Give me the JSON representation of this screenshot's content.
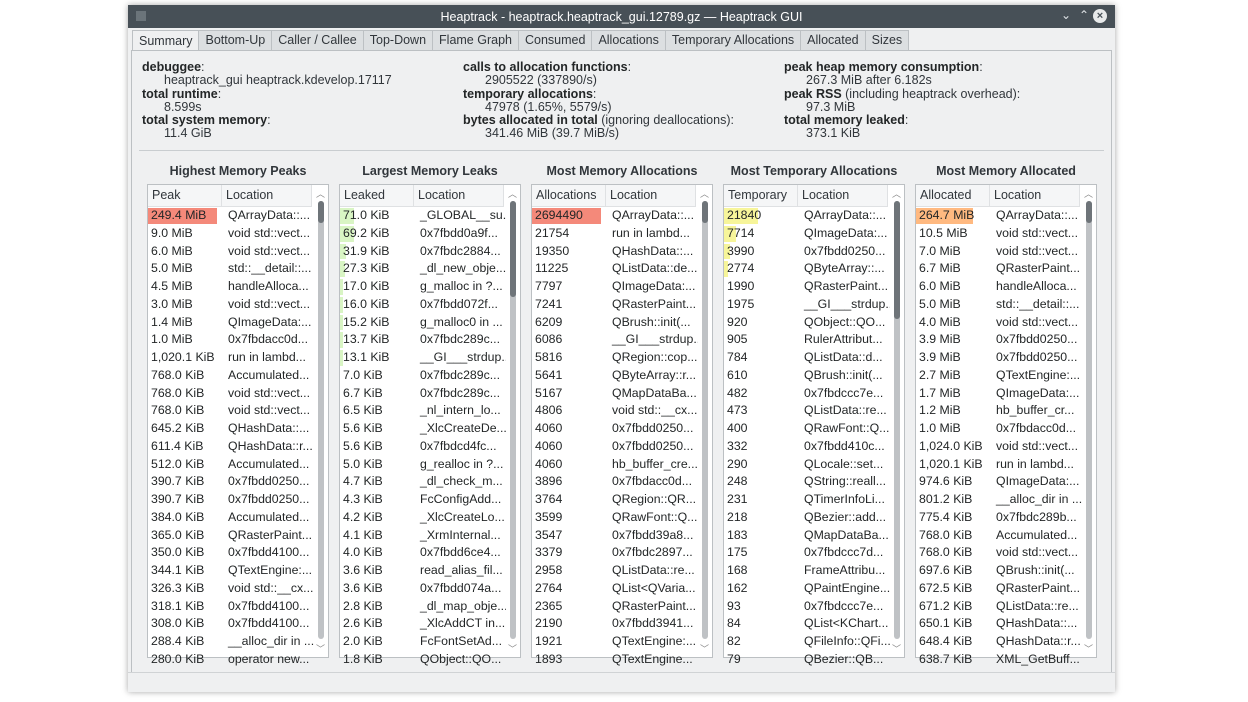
{
  "window": {
    "title": "Heaptrack - heaptrack.heaptrack_gui.12789.gz — Heaptrack GUI"
  },
  "tabs": [
    "Summary",
    "Bottom-Up",
    "Caller / Callee",
    "Top-Down",
    "Flame Graph",
    "Consumed",
    "Allocations",
    "Temporary Allocations",
    "Allocated",
    "Sizes"
  ],
  "active_tab": "Summary",
  "summary": {
    "col1": [
      {
        "label": "debuggee",
        "suffix": ":",
        "value": "heaptrack_gui heaptrack.kdevelop.17117"
      },
      {
        "label": "total runtime",
        "suffix": ":",
        "value": "8.599s"
      },
      {
        "label": "total system memory",
        "suffix": ":",
        "value": "11.4 GiB"
      }
    ],
    "col2": [
      {
        "label": "calls to allocation functions",
        "suffix": ":",
        "value": "2905522 (337890/s)"
      },
      {
        "label": "temporary allocations",
        "suffix": ":",
        "value": "47978 (1.65%, 5579/s)"
      },
      {
        "label": "bytes allocated in total",
        "suffix": " (ignoring deallocations):",
        "value": "341.46 MiB (39.7 MiB/s)"
      }
    ],
    "col3": [
      {
        "label": "peak heap memory consumption",
        "suffix": ":",
        "value": "267.3 MiB after 6.182s"
      },
      {
        "label": "peak RSS",
        "suffix": " (including heaptrack overhead):",
        "value": "97.3 MiB"
      },
      {
        "label": "total memory leaked",
        "suffix": ":",
        "value": "373.1 KiB"
      }
    ]
  },
  "tables": [
    {
      "title": "Highest Memory Peaks",
      "headers": [
        "Peak",
        "Location"
      ],
      "bar_color": "#f4897a",
      "bars": [
        0.93
      ],
      "scroll": {
        "position": 0.0,
        "visible": 0.05
      },
      "rows": [
        [
          "249.4 MiB",
          "QArrayData::..."
        ],
        [
          "9.0 MiB",
          "void std::vect..."
        ],
        [
          "6.0 MiB",
          "void std::vect..."
        ],
        [
          "5.0 MiB",
          "std::__detail::..."
        ],
        [
          "4.5 MiB",
          "handleAlloca..."
        ],
        [
          "3.0 MiB",
          "void std::vect..."
        ],
        [
          "1.4 MiB",
          "QImageData:..."
        ],
        [
          "1.0 MiB",
          "0x7fbdacc0d..."
        ],
        [
          "1,020.1 KiB",
          "run in lambd..."
        ],
        [
          "768.0 KiB",
          "Accumulated..."
        ],
        [
          "768.0 KiB",
          "void std::vect..."
        ],
        [
          "768.0 KiB",
          "void std::vect..."
        ],
        [
          "645.2 KiB",
          "QHashData::..."
        ],
        [
          "611.4 KiB",
          "QHashData::r..."
        ],
        [
          "512.0 KiB",
          "Accumulated..."
        ],
        [
          "390.7 KiB",
          "0x7fbdd0250..."
        ],
        [
          "390.7 KiB",
          "0x7fbdd0250..."
        ],
        [
          "384.0 KiB",
          "Accumulated..."
        ],
        [
          "365.0 KiB",
          "QRasterPaint..."
        ],
        [
          "350.0 KiB",
          "0x7fbdd4100..."
        ],
        [
          "344.1 KiB",
          "QTextEngine:..."
        ],
        [
          "326.3 KiB",
          "void std::__cx..."
        ],
        [
          "318.1 KiB",
          "0x7fbdd4100..."
        ],
        [
          "308.0 KiB",
          "0x7fbdd4100..."
        ],
        [
          "288.4 KiB",
          "__alloc_dir in ..."
        ],
        [
          "280.0 KiB",
          "operator new..."
        ]
      ]
    },
    {
      "title": "Largest Memory Leaks",
      "headers": [
        "Leaked",
        "Location"
      ],
      "bar_color": "#d9f5c4",
      "bars": [
        0.19,
        0.185,
        0.085,
        0.073,
        0.046,
        0.043,
        0.04,
        0.037,
        0.035
      ],
      "scroll": {
        "position": 0.0,
        "visible": 0.22
      },
      "rows": [
        [
          "71.0 KiB",
          "_GLOBAL__su..."
        ],
        [
          "69.2 KiB",
          "0x7fbdd0a9f..."
        ],
        [
          "31.9 KiB",
          "0x7fbdc2884..."
        ],
        [
          "27.3 KiB",
          "_dl_new_obje..."
        ],
        [
          "17.0 KiB",
          "g_malloc in ?..."
        ],
        [
          "16.0 KiB",
          "0x7fbdd072f..."
        ],
        [
          "15.2 KiB",
          "g_malloc0 in ..."
        ],
        [
          "13.7 KiB",
          "0x7fbdc289c..."
        ],
        [
          "13.1 KiB",
          "__GI___strdup..."
        ],
        [
          "7.0 KiB",
          "0x7fbdc289c..."
        ],
        [
          "6.7 KiB",
          "0x7fbdc289c..."
        ],
        [
          "6.5 KiB",
          "_nl_intern_lo..."
        ],
        [
          "5.6 KiB",
          "_XlcCreateDe..."
        ],
        [
          "5.6 KiB",
          "0x7fbdcd4fc..."
        ],
        [
          "5.0 KiB",
          "g_realloc in ?..."
        ],
        [
          "4.7 KiB",
          "_dl_check_m..."
        ],
        [
          "4.3 KiB",
          "FcConfigAdd..."
        ],
        [
          "4.2 KiB",
          "_XlcCreateLo..."
        ],
        [
          "4.1 KiB",
          "_XrmInternal..."
        ],
        [
          "4.0 KiB",
          "0x7fbdd6ce4..."
        ],
        [
          "3.6 KiB",
          "read_alias_fil..."
        ],
        [
          "3.6 KiB",
          "0x7fbdd074a..."
        ],
        [
          "2.8 KiB",
          "_dl_map_obje..."
        ],
        [
          "2.6 KiB",
          "_XlcAddCT in..."
        ],
        [
          "2.0 KiB",
          "FcFontSetAd..."
        ],
        [
          "1.8 KiB",
          "QObject::QO..."
        ]
      ]
    },
    {
      "title": "Most Memory Allocations",
      "headers": [
        "Allocations",
        "Location"
      ],
      "bar_color": "#f4897a",
      "bars": [
        0.93
      ],
      "scroll": {
        "position": 0.0,
        "visible": 0.05
      },
      "rows": [
        [
          "2694490",
          "QArrayData::..."
        ],
        [
          "21754",
          "run in lambd..."
        ],
        [
          "19350",
          "QHashData::..."
        ],
        [
          "11225",
          "QListData::de..."
        ],
        [
          "7797",
          "QImageData:..."
        ],
        [
          "7241",
          "QRasterPaint..."
        ],
        [
          "6209",
          "QBrush::init(..."
        ],
        [
          "6086",
          "__GI___strdup..."
        ],
        [
          "5816",
          "QRegion::cop..."
        ],
        [
          "5641",
          "QByteArray::r..."
        ],
        [
          "5167",
          "QMapDataBa..."
        ],
        [
          "4806",
          "void std::__cx..."
        ],
        [
          "4060",
          "0x7fbdd0250..."
        ],
        [
          "4060",
          "0x7fbdd0250..."
        ],
        [
          "4060",
          "hb_buffer_cre..."
        ],
        [
          "3896",
          "0x7fbdacc0d..."
        ],
        [
          "3764",
          "QRegion::QR..."
        ],
        [
          "3599",
          "QRawFont::Q..."
        ],
        [
          "3547",
          "0x7fbdd39a8..."
        ],
        [
          "3379",
          "0x7fbdc2897..."
        ],
        [
          "2958",
          "QListData::re..."
        ],
        [
          "2764",
          "QList<QVaria..."
        ],
        [
          "2365",
          "QRasterPaint..."
        ],
        [
          "2190",
          "0x7fbdd3941..."
        ],
        [
          "1921",
          "QTextEngine:..."
        ],
        [
          "1893",
          "QTextEngine..."
        ]
      ]
    },
    {
      "title": "Most Temporary Allocations",
      "headers": [
        "Temporary",
        "Location"
      ],
      "bar_color": "#f7f59a",
      "bars": [
        0.455,
        0.16,
        0.083,
        0.058
      ],
      "scroll": {
        "position": 0.0,
        "visible": 0.27
      },
      "rows": [
        [
          "21840",
          "QArrayData::..."
        ],
        [
          "7714",
          "QImageData:..."
        ],
        [
          "3990",
          "0x7fbdd0250..."
        ],
        [
          "2774",
          "QByteArray::..."
        ],
        [
          "1990",
          "QRasterPaint..."
        ],
        [
          "1975",
          "__GI___strdup..."
        ],
        [
          "920",
          "QObject::QO..."
        ],
        [
          "905",
          "RulerAttribut..."
        ],
        [
          "784",
          "QListData::d..."
        ],
        [
          "610",
          "QBrush::init(..."
        ],
        [
          "482",
          "0x7fbdccc7e..."
        ],
        [
          "473",
          "QListData::re..."
        ],
        [
          "400",
          "QRawFont::Q..."
        ],
        [
          "332",
          "0x7fbdd410c..."
        ],
        [
          "290",
          "QLocale::set..."
        ],
        [
          "248",
          "QString::reall..."
        ],
        [
          "231",
          "QTimerInfoLi..."
        ],
        [
          "218",
          "QBezier::add..."
        ],
        [
          "183",
          "QMapDataBa..."
        ],
        [
          "175",
          "0x7fbdccc7d..."
        ],
        [
          "168",
          "FrameAttribu..."
        ],
        [
          "162",
          "QPaintEngine..."
        ],
        [
          "93",
          "0x7fbdccc7e..."
        ],
        [
          "84",
          "QList<KChart..."
        ],
        [
          "82",
          "QFileInfo::QFi..."
        ],
        [
          "79",
          "QBezier::QB..."
        ]
      ]
    },
    {
      "title": "Most Memory Allocated",
      "headers": [
        "Allocated",
        "Location"
      ],
      "bar_color": "#ffb980",
      "bars": [
        0.775
      ],
      "scroll": {
        "position": 0.0,
        "visible": 0.05
      },
      "rows": [
        [
          "264.7 MiB",
          "QArrayData::..."
        ],
        [
          "10.5 MiB",
          "void std::vect..."
        ],
        [
          "7.0 MiB",
          "void std::vect..."
        ],
        [
          "6.7 MiB",
          "QRasterPaint..."
        ],
        [
          "6.0 MiB",
          "handleAlloca..."
        ],
        [
          "5.0 MiB",
          "std::__detail::..."
        ],
        [
          "4.0 MiB",
          "void std::vect..."
        ],
        [
          "3.9 MiB",
          "0x7fbdd0250..."
        ],
        [
          "3.9 MiB",
          "0x7fbdd0250..."
        ],
        [
          "2.7 MiB",
          "QTextEngine:..."
        ],
        [
          "1.7 MiB",
          "QImageData:..."
        ],
        [
          "1.2 MiB",
          "hb_buffer_cr..."
        ],
        [
          "1.0 MiB",
          "0x7fbdacc0d..."
        ],
        [
          "1,024.0 KiB",
          "void std::vect..."
        ],
        [
          "1,020.1 KiB",
          "run in lambd..."
        ],
        [
          "974.6 KiB",
          "QImageData:..."
        ],
        [
          "801.2 KiB",
          "__alloc_dir in ..."
        ],
        [
          "775.4 KiB",
          "0x7fbdc289b..."
        ],
        [
          "768.0 KiB",
          "Accumulated..."
        ],
        [
          "768.0 KiB",
          "void std::vect..."
        ],
        [
          "697.6 KiB",
          "QBrush::init(..."
        ],
        [
          "672.5 KiB",
          "QRasterPaint..."
        ],
        [
          "671.2 KiB",
          "QListData::re..."
        ],
        [
          "650.1 KiB",
          "QHashData::..."
        ],
        [
          "648.4 KiB",
          "QHashData::r..."
        ],
        [
          "638.7 KiB",
          "XML_GetBuff..."
        ]
      ]
    }
  ]
}
